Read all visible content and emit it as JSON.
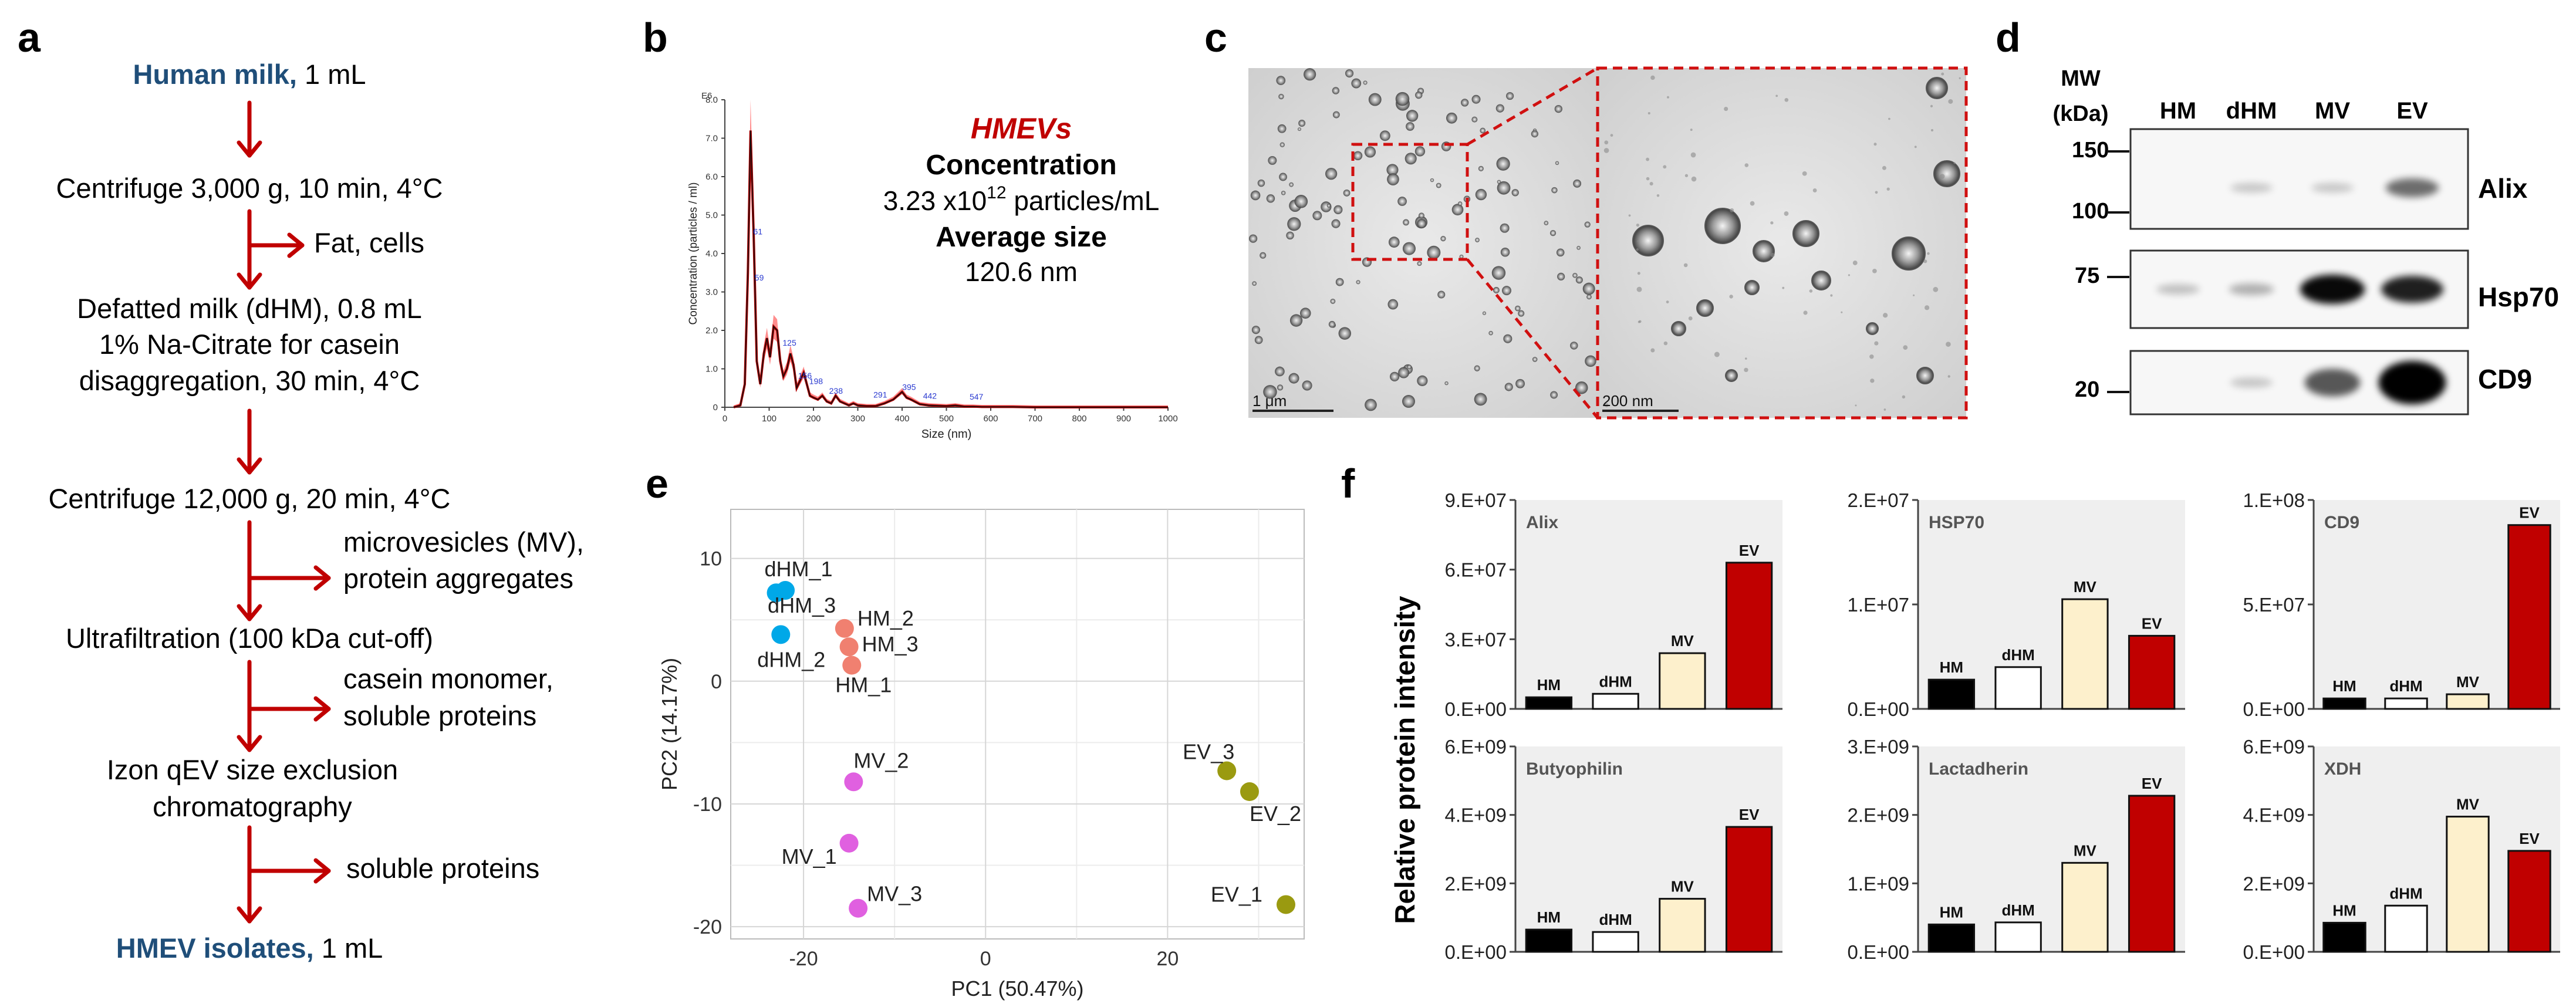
{
  "colors": {
    "dark_red": "#c00000",
    "navy": "#1f4e79",
    "blue": "#00a8e8",
    "salmon": "#f08070",
    "magenta": "#e060e0",
    "olive": "#9a9a10",
    "cream": "#fdf0cc",
    "black": "#000000",
    "white": "#ffffff",
    "grey_bg": "#efefef"
  },
  "panel_labels": {
    "a": "a",
    "b": "b",
    "c": "c",
    "d": "d",
    "e": "e",
    "f": "f"
  },
  "panel_a": {
    "steps": [
      {
        "bold": "Human milk,",
        "text": " 1 mL"
      },
      {
        "lines": [
          "Centrifuge 3,000 g, 10 min, 4°C"
        ]
      },
      {
        "side": [
          "Fat, cells"
        ]
      },
      {
        "lines": [
          "Defatted milk (dHM), 0.8 mL",
          "1% Na-Citrate for casein",
          "disaggregation, 30 min, 4°C"
        ]
      },
      {
        "lines": [
          "Centrifuge 12,000 g, 20 min, 4°C"
        ]
      },
      {
        "side": [
          "microvesicles (MV),",
          "protein aggregates"
        ]
      },
      {
        "lines": [
          "Ultrafiltration (100 kDa cut-off)"
        ]
      },
      {
        "side": [
          "casein monomer,",
          "soluble proteins"
        ]
      },
      {
        "lines": [
          "Izon qEV size exclusion",
          "chromatography"
        ]
      },
      {
        "side": [
          "soluble proteins"
        ]
      },
      {
        "bold": "HMEV isolates,",
        "text": " 1 mL"
      }
    ]
  },
  "panel_b": {
    "chart_data": {
      "type": "line",
      "xlabel": "Size (nm)",
      "ylabel": "Concentration (particles / ml)",
      "y_exponent": "E6",
      "xlim": [
        0,
        1000
      ],
      "ylim": [
        0,
        8.0
      ],
      "xticks": [
        0,
        100,
        200,
        300,
        400,
        500,
        600,
        700,
        800,
        900,
        1000
      ],
      "yticks": [
        "0",
        "1.0",
        "2.0",
        "3.0",
        "4.0",
        "5.0",
        "6.0",
        "7.0",
        "8.0"
      ],
      "x": [
        20,
        35,
        45,
        52,
        58,
        65,
        72,
        80,
        88,
        95,
        102,
        110,
        118,
        125,
        132,
        140,
        148,
        155,
        162,
        170,
        178,
        185,
        192,
        200,
        210,
        220,
        230,
        240,
        250,
        260,
        270,
        280,
        290,
        300,
        320,
        340,
        360,
        380,
        390,
        400,
        410,
        420,
        440,
        460,
        480,
        500,
        520,
        540,
        560,
        580,
        600,
        650,
        700,
        800,
        900,
        1000
      ],
      "y": [
        0,
        0.05,
        0.6,
        3.5,
        7.2,
        4.5,
        1.2,
        0.6,
        1.4,
        1.8,
        1.3,
        2.1,
        2.0,
        1.2,
        0.8,
        1.0,
        1.4,
        1.1,
        0.5,
        0.7,
        0.9,
        0.6,
        0.3,
        0.25,
        0.2,
        0.3,
        0.15,
        0.1,
        0.3,
        0.15,
        0.1,
        0.05,
        0.1,
        0.05,
        0.03,
        0.03,
        0.1,
        0.2,
        0.3,
        0.4,
        0.25,
        0.2,
        0.08,
        0.05,
        0.04,
        0.03,
        0.05,
        0.02,
        0.02,
        0.01,
        0.01,
        0.01,
        0.0,
        0.0,
        0.0,
        0.0
      ],
      "peak_labels": [
        {
          "x": 59,
          "y": 4.5,
          "text": "61"
        },
        {
          "x": 62,
          "y": 3.3,
          "text": "59"
        },
        {
          "x": 125,
          "y": 1.6,
          "text": "125"
        },
        {
          "x": 160,
          "y": 0.75,
          "text": "156"
        },
        {
          "x": 185,
          "y": 0.6,
          "text": "198"
        },
        {
          "x": 230,
          "y": 0.35,
          "text": "238"
        },
        {
          "x": 330,
          "y": 0.25,
          "text": "291"
        },
        {
          "x": 395,
          "y": 0.45,
          "text": "395"
        },
        {
          "x": 442,
          "y": 0.22,
          "text": "442"
        },
        {
          "x": 547,
          "y": 0.2,
          "text": "547"
        }
      ]
    },
    "annotation": {
      "title": "HMEVs",
      "conc_label": "Concentration",
      "conc_mantissa": "3.23 x10",
      "conc_exp": "12",
      "conc_unit": " particles/mL",
      "size_label": "Average size",
      "size_value": "120.6 nm"
    }
  },
  "panel_c": {
    "scale_left": "1 μm",
    "scale_right": "200 nm"
  },
  "panel_d": {
    "mw_label_1": "MW",
    "mw_label_2": "(kDa)",
    "lanes": [
      "HM",
      "dHM",
      "MV",
      "EV"
    ],
    "markers": [
      "150",
      "100",
      "75",
      "20"
    ],
    "blots": [
      {
        "name": "Alix",
        "intensity": [
          0.0,
          0.05,
          0.05,
          0.45
        ]
      },
      {
        "name": "Hsp70",
        "intensity": [
          0.08,
          0.15,
          0.9,
          0.8
        ]
      },
      {
        "name": "CD9",
        "intensity": [
          0.0,
          0.05,
          0.55,
          1.0
        ]
      }
    ]
  },
  "panel_e": {
    "chart_data": {
      "type": "scatter",
      "xlabel": "PC1 (50.47%)",
      "ylabel": "PC2 (14.17%)",
      "xlim": [
        -28,
        35
      ],
      "ylim": [
        -21,
        14
      ],
      "xticks": [
        -20,
        0,
        20
      ],
      "yticks": [
        10,
        0,
        -10,
        -20
      ],
      "series": [
        {
          "name": "dHM",
          "points": [
            {
              "label": "dHM_1",
              "x": -23,
              "y": 7.2
            },
            {
              "label": "dHM_3",
              "x": -22,
              "y": 7.4
            },
            {
              "label": "dHM_2",
              "x": -22.5,
              "y": 3.8
            }
          ]
        },
        {
          "name": "HM",
          "points": [
            {
              "label": "HM_2",
              "x": -15.5,
              "y": 4.3
            },
            {
              "label": "HM_3",
              "x": -15,
              "y": 2.8
            },
            {
              "label": "HM_1",
              "x": -14.7,
              "y": 1.3
            }
          ]
        },
        {
          "name": "MV",
          "points": [
            {
              "label": "MV_2",
              "x": -14.5,
              "y": -8.2
            },
            {
              "label": "MV_1",
              "x": -15,
              "y": -13.2
            },
            {
              "label": "MV_3",
              "x": -14,
              "y": -18.5
            }
          ]
        },
        {
          "name": "EV",
          "points": [
            {
              "label": "EV_3",
              "x": 26.5,
              "y": -7.3
            },
            {
              "label": "EV_2",
              "x": 29,
              "y": -9
            },
            {
              "label": "EV_1",
              "x": 33,
              "y": -18.2
            }
          ]
        }
      ]
    }
  },
  "panel_f": {
    "ylabel": "Relative protein intensity",
    "chart_data": [
      {
        "type": "bar",
        "title": "Alix",
        "categories": [
          "HM",
          "dHM",
          "MV",
          "EV"
        ],
        "values": [
          5000000,
          6500000,
          24000000,
          63000000
        ],
        "ylim": [
          0,
          90000000
        ],
        "yticks": [
          "0.E+00",
          "3.E+07",
          "6.E+07",
          "9.E+07"
        ]
      },
      {
        "type": "bar",
        "title": "HSP70",
        "categories": [
          "HM",
          "dHM",
          "MV",
          "EV"
        ],
        "values": [
          2800000,
          4000000,
          10500000,
          7000000
        ],
        "ylim": [
          0,
          20000000
        ],
        "yticks": [
          "0.E+00",
          "1.E+07",
          "2.E+07"
        ]
      },
      {
        "type": "bar",
        "title": "CD9",
        "categories": [
          "HM",
          "dHM",
          "MV",
          "EV"
        ],
        "values": [
          5000000,
          5000000,
          7000000,
          88000000
        ],
        "ylim": [
          0,
          100000000
        ],
        "yticks": [
          "0.E+00",
          "5.E+07",
          "1.E+08"
        ]
      },
      {
        "type": "bar",
        "title": "Butyophilin",
        "categories": [
          "HM",
          "dHM",
          "MV",
          "EV"
        ],
        "values": [
          650000000,
          580000000,
          1550000000,
          3650000000
        ],
        "ylim": [
          0,
          6000000000
        ],
        "yticks": [
          "0.E+00",
          "2.E+09",
          "4.E+09",
          "6.E+09"
        ]
      },
      {
        "type": "bar",
        "title": "Lactadherin",
        "categories": [
          "HM",
          "dHM",
          "MV",
          "EV"
        ],
        "values": [
          400000000,
          430000000,
          1300000000,
          2280000000
        ],
        "ylim": [
          0,
          3000000000
        ],
        "yticks": [
          "0.E+00",
          "1.E+09",
          "2.E+09",
          "3.E+09"
        ]
      },
      {
        "type": "bar",
        "title": "XDH",
        "categories": [
          "HM",
          "dHM",
          "MV",
          "EV"
        ],
        "values": [
          850000000,
          1350000000,
          3950000000,
          2950000000
        ],
        "ylim": [
          0,
          6000000000
        ],
        "yticks": [
          "0.E+00",
          "2.E+09",
          "4.E+09",
          "6.E+09"
        ]
      }
    ]
  }
}
